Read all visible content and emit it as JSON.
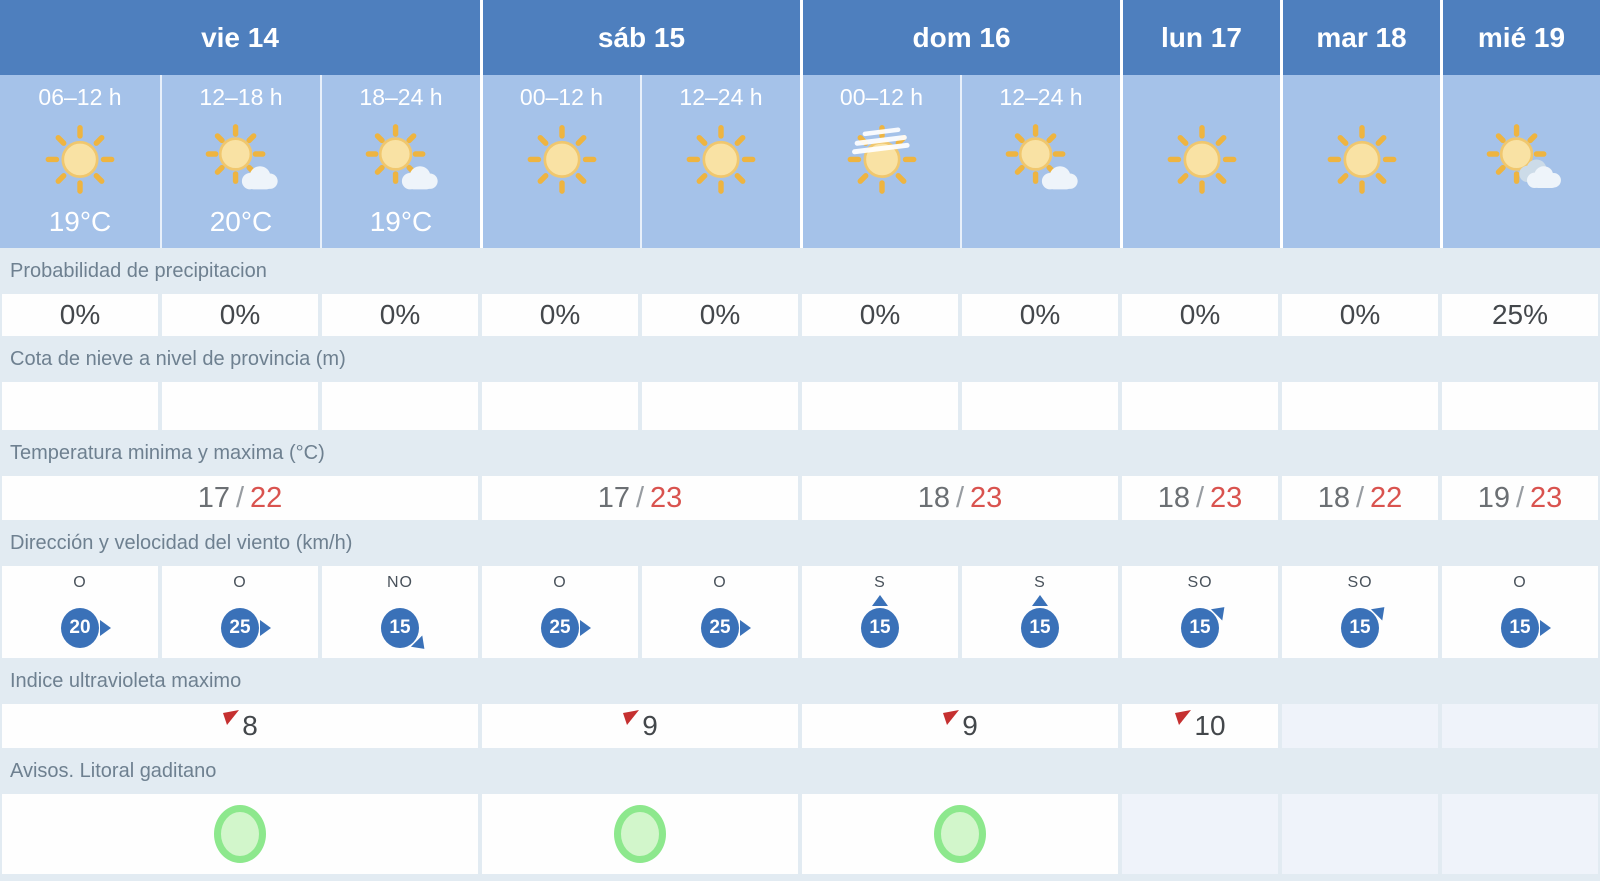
{
  "days": [
    {
      "id": "vie14",
      "label": "vie 14",
      "span": 3
    },
    {
      "id": "sab15",
      "label": "sáb 15",
      "span": 2
    },
    {
      "id": "dom16",
      "label": "dom 16",
      "span": 2
    },
    {
      "id": "lun17",
      "label": "lun 17",
      "span": 1
    },
    {
      "id": "mar18",
      "label": "mar 18",
      "span": 1
    },
    {
      "id": "mie19",
      "label": "mié 19",
      "span": 1
    }
  ],
  "slots": [
    {
      "day": 0,
      "time": "06–12 h",
      "icon": "sun",
      "temp": "19°C",
      "precip": "0%",
      "snow": "",
      "wind_dir": "O",
      "wind_speed": "20",
      "wind_arrow": "e"
    },
    {
      "day": 0,
      "time": "12–18 h",
      "icon": "sun-cloud",
      "temp": "20°C",
      "precip": "0%",
      "snow": "",
      "wind_dir": "O",
      "wind_speed": "25",
      "wind_arrow": "e"
    },
    {
      "day": 0,
      "time": "18–24 h",
      "icon": "sun-cloud",
      "temp": "19°C",
      "precip": "0%",
      "snow": "",
      "wind_dir": "NO",
      "wind_speed": "15",
      "wind_arrow": "se"
    },
    {
      "day": 1,
      "time": "00–12 h",
      "icon": "sun",
      "temp": "",
      "precip": "0%",
      "snow": "",
      "wind_dir": "O",
      "wind_speed": "25",
      "wind_arrow": "e"
    },
    {
      "day": 1,
      "time": "12–24 h",
      "icon": "sun",
      "temp": "",
      "precip": "0%",
      "snow": "",
      "wind_dir": "O",
      "wind_speed": "25",
      "wind_arrow": "e"
    },
    {
      "day": 2,
      "time": "00–12 h",
      "icon": "sun-haze",
      "temp": "",
      "precip": "0%",
      "snow": "",
      "wind_dir": "S",
      "wind_speed": "15",
      "wind_arrow": "n"
    },
    {
      "day": 2,
      "time": "12–24 h",
      "icon": "sun-cloud",
      "temp": "",
      "precip": "0%",
      "snow": "",
      "wind_dir": "S",
      "wind_speed": "15",
      "wind_arrow": "n"
    },
    {
      "day": 3,
      "time": "",
      "icon": "sun",
      "temp": "",
      "precip": "0%",
      "snow": "",
      "wind_dir": "SO",
      "wind_speed": "15",
      "wind_arrow": "ne"
    },
    {
      "day": 4,
      "time": "",
      "icon": "sun",
      "temp": "",
      "precip": "0%",
      "snow": "",
      "wind_dir": "SO",
      "wind_speed": "15",
      "wind_arrow": "ne"
    },
    {
      "day": 5,
      "time": "",
      "icon": "sun-clouds",
      "temp": "",
      "precip": "25%",
      "snow": "",
      "wind_dir": "O",
      "wind_speed": "15",
      "wind_arrow": "e"
    }
  ],
  "section_labels": {
    "precipitation": "Probabilidad de precipitacion",
    "snow": "Cota de nieve a nivel de provincia (m)",
    "temperature": "Temperatura minima y maxima (°C)",
    "wind": "Dirección y velocidad del viento (km/h)",
    "uv": "Indice ultravioleta maximo",
    "warnings": "Avisos. Litoral gaditano"
  },
  "daily": [
    {
      "temp_min": "17",
      "temp_sep": "/",
      "temp_max": "22",
      "uv": "8",
      "warning": true
    },
    {
      "temp_min": "17",
      "temp_sep": "/",
      "temp_max": "23",
      "uv": "9",
      "warning": true
    },
    {
      "temp_min": "18",
      "temp_sep": "/",
      "temp_max": "23",
      "uv": "9",
      "warning": true
    },
    {
      "temp_min": "18",
      "temp_sep": "/",
      "temp_max": "23",
      "uv": "10",
      "warning": false
    },
    {
      "temp_min": "18",
      "temp_sep": "/",
      "temp_max": "22",
      "uv": null,
      "warning": false
    },
    {
      "temp_min": "19",
      "temp_sep": "/",
      "temp_max": "23",
      "uv": null,
      "warning": false
    }
  ],
  "colors": {
    "header_blue": "#4e7fbe",
    "subheader_blue": "#a5c2e9",
    "table_bg": "#e2ebf2",
    "temp_max_red": "#d9534f",
    "wind_circle_blue": "#3a71b8",
    "uv_flag_red": "#c53030",
    "warning_green_border": "#8de88d",
    "warning_green_fill": "#d2f6cb",
    "sun_ray": "#eeb440",
    "sun_core": "#f9e2a4"
  }
}
